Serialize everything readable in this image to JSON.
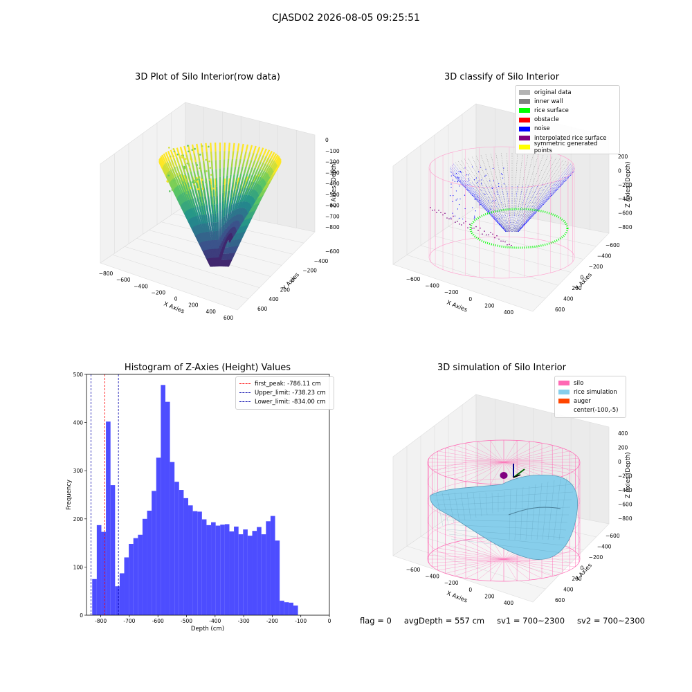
{
  "suptitle": "CJASD02 2026-08-05 09:25:51",
  "status": {
    "flag": "flag = 0",
    "avg_depth": "avgDepth = 557 cm",
    "sv1": "sv1 = 700~2300",
    "sv2": "sv2 = 700~2300"
  },
  "chart_data": [
    {
      "type": "scatter",
      "title": "3D Plot of Silo Interior(row data)",
      "xlabel": "X Axies",
      "ylabel": "Y Axies",
      "zlabel": "Z Axies (Depth)",
      "x_ticks": [
        "−800",
        "−600",
        "−400",
        "−200",
        "0",
        "200",
        "400",
        "600"
      ],
      "y_ticks": [
        "−600",
        "−400",
        "−200",
        "0",
        "200",
        "400",
        "600"
      ],
      "z_ticks": [
        "0",
        "−100",
        "−200",
        "−300",
        "−400",
        "−500",
        "−600",
        "−700",
        "−800"
      ],
      "colormap": "viridis",
      "depth_range": [
        -840,
        0
      ]
    },
    {
      "type": "scatter",
      "title": "3D classify of Silo Interior",
      "xlabel": "X Axies",
      "ylabel": "Y Axies",
      "zlabel": "Z Axies (Depth)",
      "x_ticks": [
        "−600",
        "−400",
        "−200",
        "0",
        "200",
        "400"
      ],
      "y_ticks": [
        "−600",
        "−400",
        "−200",
        "0",
        "200",
        "400",
        "600"
      ],
      "z_ticks": [
        "200",
        "0",
        "−200",
        "−400",
        "−600",
        "−800"
      ],
      "legend": [
        {
          "label": "original data",
          "color": "#b3b3b3"
        },
        {
          "label": "inner wall",
          "color": "#808080"
        },
        {
          "label": "rice surface",
          "color": "#00ff00"
        },
        {
          "label": "obstacle",
          "color": "#ff0000"
        },
        {
          "label": "noise",
          "color": "#0000ff"
        },
        {
          "label": "interpolated rice surface",
          "color": "#800080"
        },
        {
          "label": "symmetric generated points",
          "color": "#ffff00"
        }
      ],
      "legend_position": "upper-right"
    },
    {
      "type": "bar",
      "title": "Histogram of Z-Axies (Height) Values",
      "xlabel": "Depth (cm)",
      "ylabel": "Frequency",
      "xlim": [
        -850,
        0
      ],
      "ylim": [
        0,
        500
      ],
      "x_ticks": [
        -800,
        -700,
        -600,
        -500,
        -400,
        -300,
        -200,
        -100,
        0
      ],
      "y_ticks": [
        0,
        100,
        200,
        300,
        400,
        500
      ],
      "bin_start": -830,
      "bin_width": 16,
      "values": [
        75,
        187,
        173,
        402,
        270,
        60,
        87,
        120,
        148,
        160,
        167,
        200,
        217,
        258,
        327,
        478,
        443,
        318,
        277,
        260,
        243,
        228,
        216,
        215,
        199,
        187,
        193,
        186,
        188,
        189,
        174,
        184,
        168,
        178,
        165,
        175,
        183,
        168,
        195,
        206,
        155,
        30,
        27,
        26,
        20
      ],
      "bar_color": "#4d4dff",
      "lines": [
        {
          "label": "first_peak: -786.11 cm",
          "x": -786.11,
          "color": "#ff0000"
        },
        {
          "label": "Upper_limit: -738.23 cm",
          "x": -738.23,
          "color": "#0000aa"
        },
        {
          "label": "Lower_limit: -834.00 cm",
          "x": -834.0,
          "color": "#0000aa"
        }
      ],
      "legend_position": "upper-right"
    },
    {
      "type": "surface",
      "title": "3D simulation of Silo Interior",
      "xlabel": "X Axies",
      "ylabel": "Y Axies",
      "zlabel": "Z Axies (Depth)",
      "x_ticks": [
        "−600",
        "−400",
        "−200",
        "0",
        "200",
        "400"
      ],
      "y_ticks": [
        "−600",
        "−400",
        "−200",
        "0",
        "200",
        "400",
        "600"
      ],
      "z_ticks": [
        "400",
        "200",
        "0",
        "−200",
        "−400",
        "−600",
        "−800"
      ],
      "legend": [
        {
          "label": "silo",
          "color": "#ff69b4"
        },
        {
          "label": "rice simulation",
          "color": "#87ceeb"
        },
        {
          "label": "auger",
          "color": "#ff4500"
        },
        {
          "label": "center(-100,-5)",
          "color": ""
        }
      ],
      "legend_position": "upper-right"
    }
  ]
}
